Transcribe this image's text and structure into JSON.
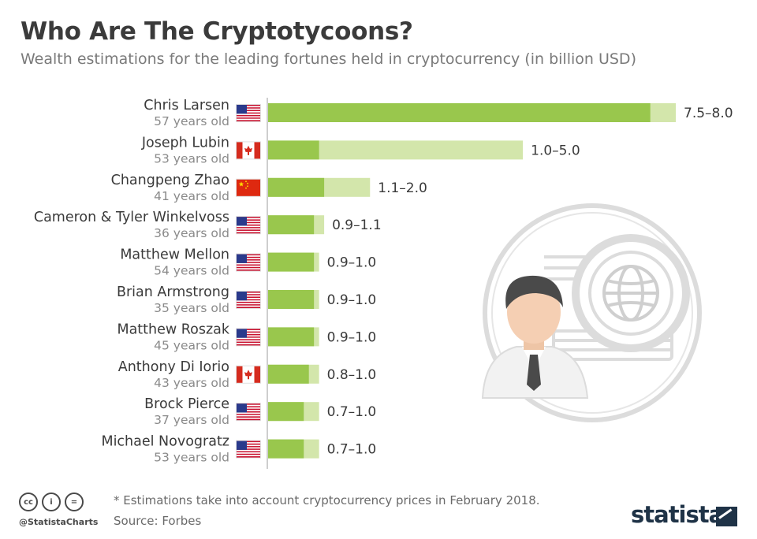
{
  "title": "Who Are The Cryptotycoons?",
  "subtitle": "Wealth estimations for the leading fortunes held in cryptocurrency (in billion USD)",
  "footnote": "* Estimations take into account cryptocurrency prices in February 2018.",
  "source": "Source: Forbes",
  "handle": "@StatistaCharts",
  "brand": "statista",
  "cc_icons": [
    "cc",
    "i",
    "="
  ],
  "colors": {
    "low": "#99c74d",
    "range": "#d3e6ab",
    "axis": "#bdbdbd",
    "illustration_gray": "#d9d9d9"
  },
  "chart_data": {
    "type": "bar",
    "orientation": "horizontal",
    "categories": [
      "Chris Larsen",
      "Joseph Lubin",
      "Changpeng Zhao",
      "Cameron & Tyler Winkelvoss",
      "Matthew Mellon",
      "Brian Armstrong",
      "Matthew Roszak",
      "Anthony Di Iorio",
      "Brock Pierce",
      "Michael Novogratz"
    ],
    "ages": [
      "57 years old",
      "53 years old",
      "41 years old",
      "36 years old",
      "54 years old",
      "35 years old",
      "45 years old",
      "43 years old",
      "37 years old",
      "53 years old"
    ],
    "countries": [
      "us",
      "ca",
      "cn",
      "us",
      "us",
      "us",
      "us",
      "ca",
      "us",
      "us"
    ],
    "low": [
      7.5,
      1.0,
      1.1,
      0.9,
      0.9,
      0.9,
      0.9,
      0.8,
      0.7,
      0.7
    ],
    "high": [
      8.0,
      5.0,
      2.0,
      1.1,
      1.0,
      1.0,
      1.0,
      1.0,
      1.0,
      1.0
    ],
    "labels": [
      "7.5–8.0",
      "1.0–5.0",
      "1.1–2.0",
      "0.9–1.1",
      "0.9–1.0",
      "0.9–1.0",
      "0.9–1.0",
      "0.8–1.0",
      "0.7–1.0",
      "0.7–1.0"
    ],
    "xlim": [
      0,
      8.0
    ],
    "grid": false,
    "legend": "none"
  }
}
